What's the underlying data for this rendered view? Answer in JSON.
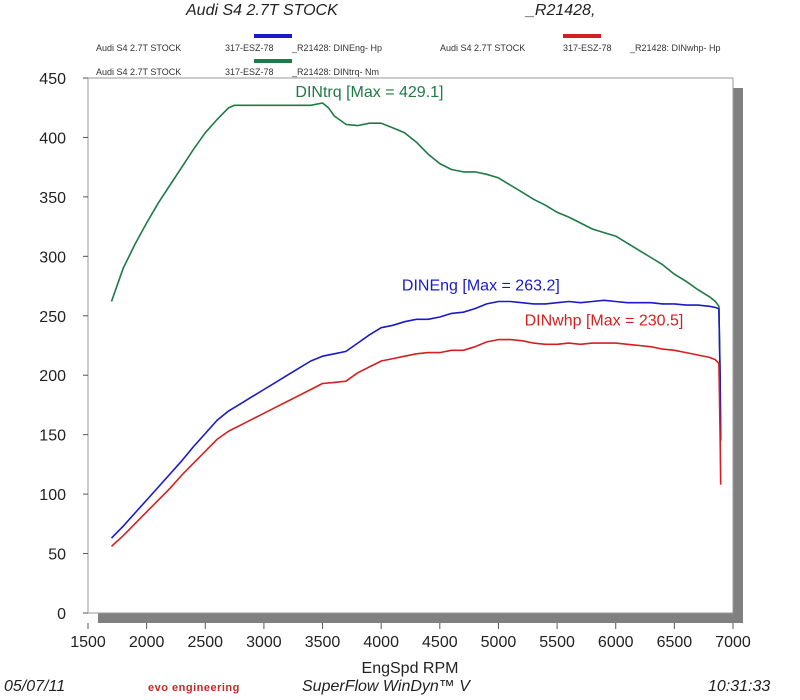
{
  "header": {
    "title_left": "Audi S4  2.7T  STOCK",
    "title_right": "_R21428,"
  },
  "legend": [
    {
      "vehicle": "Audi S4  2.7T  STOCK",
      "plate": "317-ESZ-78",
      "run": "_R21428: DINEng- Hp",
      "color": "#1a1ac8"
    },
    {
      "vehicle": "Audi S4  2.7T  STOCK",
      "plate": "317-ESZ-78",
      "run": "_R21428: DINwhp-  Hp",
      "color": "#d42020"
    },
    {
      "vehicle": "Audi S4  2.7T  STOCK",
      "plate": "317-ESZ-78",
      "run": "_R21428: DINtrq- Nm",
      "color": "#1e7a46"
    }
  ],
  "footer": {
    "date": "05/07/11",
    "brand": "evo engineering",
    "software": "SuperFlow WinDyn™ V",
    "time": "10:31:33"
  },
  "chart_data": {
    "type": "line",
    "xlabel": "EngSpd  RPM",
    "ylabel": "",
    "xlim": [
      1500,
      7000
    ],
    "ylim": [
      0,
      450
    ],
    "x_ticks": [
      1500,
      2000,
      2500,
      3000,
      3500,
      4000,
      4500,
      5000,
      5500,
      6000,
      6500,
      7000
    ],
    "y_ticks": [
      0,
      50,
      100,
      150,
      200,
      250,
      300,
      350,
      400,
      450
    ],
    "grid": false,
    "series": [
      {
        "name": "DINtrq",
        "label": "DINtrq [Max = 429.1]",
        "color": "#1e7a46",
        "x": [
          1700,
          1800,
          1900,
          2000,
          2100,
          2200,
          2300,
          2400,
          2500,
          2600,
          2700,
          2750,
          2800,
          2900,
          3000,
          3100,
          3200,
          3300,
          3400,
          3500,
          3550,
          3600,
          3700,
          3800,
          3900,
          4000,
          4100,
          4200,
          4300,
          4400,
          4500,
          4600,
          4700,
          4800,
          4900,
          5000,
          5100,
          5200,
          5300,
          5400,
          5500,
          5600,
          5700,
          5800,
          5900,
          6000,
          6100,
          6200,
          6300,
          6400,
          6500,
          6600,
          6700,
          6800,
          6850,
          6880,
          6890,
          6895
        ],
        "values": [
          262,
          290,
          310,
          328,
          345,
          360,
          375,
          390,
          404,
          415,
          425,
          427,
          427,
          427,
          427,
          427,
          427,
          427,
          427,
          429,
          425,
          418,
          411,
          410,
          412,
          412,
          408,
          404,
          396,
          386,
          378,
          373,
          371,
          371,
          369,
          366,
          360,
          354,
          348,
          343,
          337,
          333,
          328,
          323,
          320,
          317,
          311,
          305,
          299,
          293,
          285,
          279,
          272,
          266,
          262,
          258,
          200,
          145
        ]
      },
      {
        "name": "DINEng",
        "label": "DINEng [Max = 263.2]",
        "color": "#1a1ac8",
        "x": [
          1700,
          1800,
          1900,
          2000,
          2100,
          2200,
          2300,
          2400,
          2500,
          2600,
          2700,
          2800,
          2900,
          3000,
          3100,
          3200,
          3300,
          3400,
          3500,
          3600,
          3700,
          3800,
          3900,
          4000,
          4100,
          4200,
          4300,
          4400,
          4500,
          4600,
          4700,
          4800,
          4900,
          5000,
          5100,
          5200,
          5300,
          5400,
          5500,
          5600,
          5700,
          5800,
          5900,
          6000,
          6100,
          6200,
          6300,
          6400,
          6500,
          6600,
          6700,
          6800,
          6850,
          6880,
          6890,
          6895
        ],
        "values": [
          63,
          73,
          84,
          95,
          106,
          117,
          128,
          140,
          151,
          162,
          170,
          176,
          182,
          188,
          194,
          200,
          206,
          212,
          216,
          218,
          220,
          227,
          234,
          240,
          242,
          245,
          247,
          247,
          249,
          252,
          253,
          256,
          260,
          262,
          262,
          261,
          260,
          260,
          261,
          262,
          261,
          262,
          263,
          262,
          261,
          261,
          261,
          260,
          260,
          259,
          259,
          258,
          257,
          256,
          200,
          145
        ]
      },
      {
        "name": "DINwhp",
        "label": "DINwhp [Max = 230.5]",
        "color": "#d42020",
        "x": [
          1700,
          1800,
          1900,
          2000,
          2100,
          2200,
          2300,
          2400,
          2500,
          2600,
          2700,
          2800,
          2900,
          3000,
          3100,
          3200,
          3300,
          3400,
          3500,
          3600,
          3700,
          3800,
          3900,
          4000,
          4100,
          4200,
          4300,
          4400,
          4500,
          4600,
          4700,
          4800,
          4900,
          5000,
          5100,
          5200,
          5300,
          5400,
          5500,
          5600,
          5700,
          5800,
          5900,
          6000,
          6100,
          6200,
          6300,
          6400,
          6500,
          6600,
          6700,
          6800,
          6850,
          6880,
          6890,
          6895
        ],
        "values": [
          56,
          65,
          75,
          85,
          95,
          105,
          116,
          126,
          136,
          146,
          153,
          158,
          163,
          168,
          173,
          178,
          183,
          188,
          193,
          194,
          195,
          202,
          207,
          212,
          214,
          216,
          218,
          219,
          219,
          221,
          221,
          224,
          228,
          230,
          230,
          229,
          227,
          226,
          226,
          227,
          226,
          227,
          227,
          227,
          226,
          225,
          224,
          222,
          221,
          219,
          217,
          215,
          213,
          210,
          150,
          108
        ]
      }
    ]
  }
}
